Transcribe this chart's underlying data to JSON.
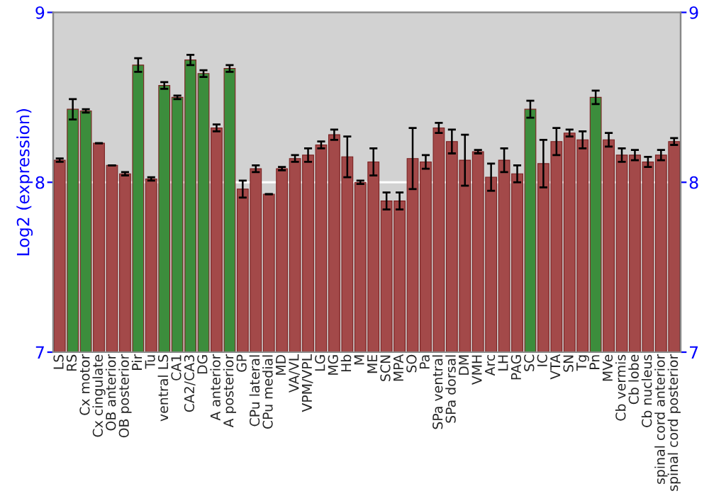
{
  "chart_data": {
    "type": "bar",
    "ylabel": "Log2 (expression)",
    "categories": [
      "LS",
      "RS",
      "Cx motor",
      "Cx cingulate",
      "OB anterior",
      "OB posterior",
      "Pir",
      "Tu",
      "ventral LS",
      "CA1",
      "CA2/CA3",
      "DG",
      "A anterior",
      "A posterior",
      "GP",
      "CPu lateral",
      "CPu medial",
      "MD",
      "VA/VL",
      "VPM/VPL",
      "LG",
      "MG",
      "Hb",
      "M",
      "ME",
      "SCN",
      "MPA",
      "SO",
      "Pa",
      "SPa ventral",
      "SPa dorsal",
      "DM",
      "VMH",
      "Arc",
      "LH",
      "PAG",
      "SC",
      "IC",
      "VTA",
      "SN",
      "Tg",
      "Pn",
      "MVe",
      "Cb vermis",
      "Cb lobe",
      "Cb nucleus",
      "spinal cord anterior",
      "spinal cord posterior"
    ],
    "values": [
      8.13,
      8.43,
      8.42,
      8.23,
      8.1,
      8.05,
      8.69,
      8.02,
      8.57,
      8.5,
      8.72,
      8.64,
      8.32,
      8.67,
      7.96,
      8.08,
      7.93,
      8.08,
      8.14,
      8.16,
      8.22,
      8.28,
      8.15,
      8.0,
      8.12,
      7.89,
      7.89,
      8.14,
      8.12,
      8.32,
      8.24,
      8.13,
      8.18,
      8.03,
      8.13,
      8.05,
      8.43,
      8.11,
      8.24,
      8.29,
      8.25,
      8.5,
      8.25,
      8.16,
      8.16,
      8.12,
      8.16,
      8.24
    ],
    "errors": [
      0.01,
      0.06,
      0.01,
      0.0,
      0.0,
      0.01,
      0.04,
      0.01,
      0.02,
      0.01,
      0.03,
      0.02,
      0.02,
      0.02,
      0.05,
      0.02,
      0.0,
      0.01,
      0.02,
      0.04,
      0.02,
      0.03,
      0.12,
      0.01,
      0.08,
      0.05,
      0.05,
      0.18,
      0.04,
      0.03,
      0.07,
      0.15,
      0.01,
      0.08,
      0.07,
      0.05,
      0.05,
      0.14,
      0.08,
      0.02,
      0.05,
      0.04,
      0.04,
      0.04,
      0.03,
      0.03,
      0.03,
      0.02
    ],
    "colors": [
      "#b23a3a",
      "#2f9a2f",
      "#2f9a2f",
      "#b23a3a",
      "#b23a3a",
      "#b23a3a",
      "#2f9a2f",
      "#b23a3a",
      "#2f9a2f",
      "#2f9a2f",
      "#2f9a2f",
      "#2f9a2f",
      "#b23a3a",
      "#2f9a2f",
      "#b23a3a",
      "#b23a3a",
      "#b23a3a",
      "#b23a3a",
      "#b23a3a",
      "#b23a3a",
      "#b23a3a",
      "#b23a3a",
      "#b23a3a",
      "#b23a3a",
      "#b23a3a",
      "#b23a3a",
      "#b23a3a",
      "#b23a3a",
      "#b23a3a",
      "#b23a3a",
      "#b23a3a",
      "#b23a3a",
      "#b23a3a",
      "#b23a3a",
      "#b23a3a",
      "#b23a3a",
      "#2f9a2f",
      "#b23a3a",
      "#b23a3a",
      "#b23a3a",
      "#b23a3a",
      "#2f9a2f",
      "#b23a3a",
      "#b23a3a",
      "#b23a3a",
      "#b23a3a",
      "#b23a3a",
      "#b23a3a"
    ],
    "ylim": [
      7,
      9
    ],
    "yticks": [
      7,
      8,
      9
    ],
    "y2lim": [
      7,
      9
    ],
    "y2ticks": [
      7,
      8,
      9
    ],
    "grid": "y",
    "legend": false
  }
}
